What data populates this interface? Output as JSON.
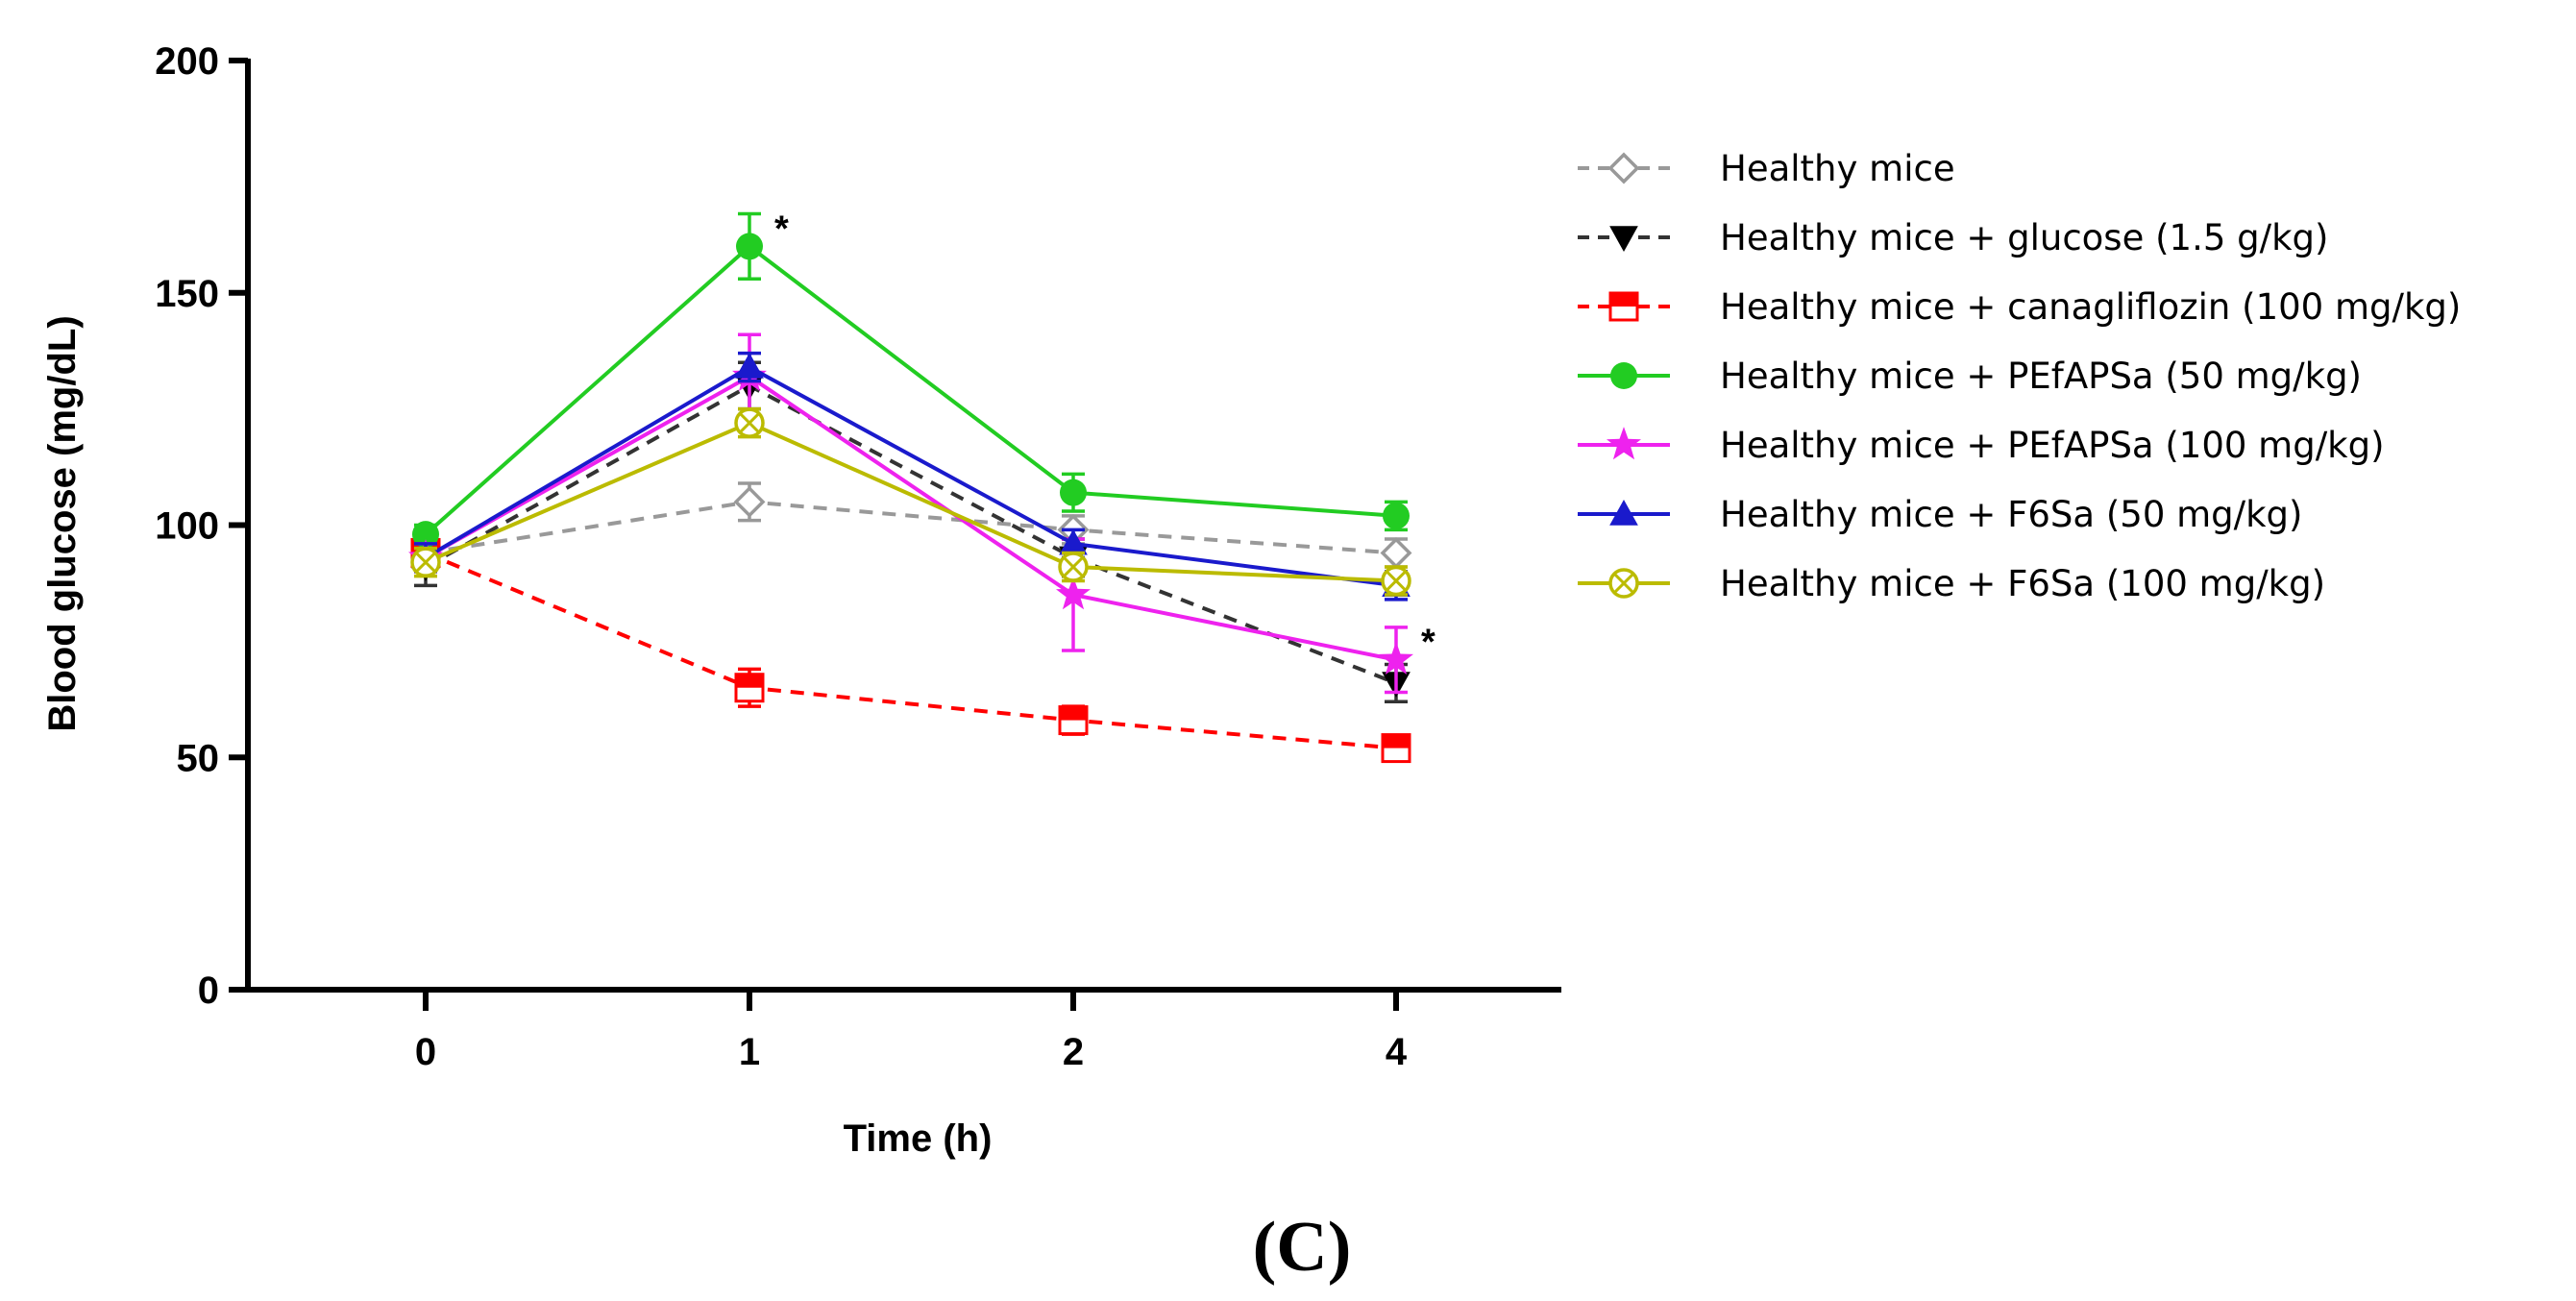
{
  "chart_data": {
    "type": "line",
    "title": "",
    "xlabel": "Time (h)",
    "ylabel": "Blood glucose (mg/dL)",
    "x": [
      0,
      1,
      2,
      4
    ],
    "x_tick_labels": [
      "0",
      "1",
      "2",
      "4"
    ],
    "ylim": [
      0,
      200
    ],
    "y_ticks": [
      0,
      50,
      100,
      150,
      200
    ],
    "y_tick_labels": [
      "0",
      "50",
      "100",
      "150",
      "200"
    ],
    "legend_position": "right",
    "panel_label": "(C)",
    "series": [
      {
        "name": "Healthy mice",
        "color": "#999999",
        "dash": "dashed",
        "marker": "diamond-open",
        "values": [
          94,
          105,
          99,
          94
        ],
        "errors": [
          3,
          4,
          3,
          3
        ]
      },
      {
        "name": "Healthy mice + glucose (1.5 g/kg)",
        "color": "#333333",
        "dash": "dashed",
        "marker": "triangle-down",
        "values": [
          91,
          130,
          93,
          66
        ],
        "errors": [
          4,
          5,
          4,
          4
        ]
      },
      {
        "name": "Healthy mice + canagliflozin (100 mg/kg)",
        "color": "#ff0000",
        "dash": "dashed",
        "marker": "square-half",
        "values": [
          94,
          65,
          58,
          52
        ],
        "errors": [
          2,
          4,
          3,
          2
        ]
      },
      {
        "name": "Healthy mice + PEfAPSa (50 mg/kg)",
        "color": "#22cc22",
        "dash": "solid",
        "marker": "circle",
        "values": [
          98,
          160,
          107,
          102
        ],
        "errors": [
          2,
          7,
          4,
          3
        ]
      },
      {
        "name": "Healthy mice + PEfAPSa (100 mg/kg)",
        "color": "#ee22ee",
        "dash": "solid",
        "marker": "star",
        "values": [
          93,
          132,
          85,
          71
        ],
        "errors": [
          3,
          9,
          12,
          7
        ]
      },
      {
        "name": "Healthy mice + F6Sa (50 mg/kg)",
        "color": "#1a1acc",
        "dash": "solid",
        "marker": "triangle-up",
        "values": [
          93,
          134,
          96,
          87
        ],
        "errors": [
          3,
          3,
          3,
          3
        ]
      },
      {
        "name": "Healthy mice + F6Sa (100 mg/kg)",
        "color": "#bbbb00",
        "dash": "solid",
        "marker": "circle-x",
        "values": [
          92,
          122,
          91,
          88
        ],
        "errors": [
          3,
          3,
          3,
          3
        ]
      }
    ],
    "annotations": [
      {
        "text": "*",
        "series": "Healthy mice + PEfAPSa (50 mg/kg)",
        "x": 1
      },
      {
        "text": "*",
        "series": "Healthy mice + PEfAPSa (100 mg/kg)",
        "x": 4
      }
    ]
  }
}
